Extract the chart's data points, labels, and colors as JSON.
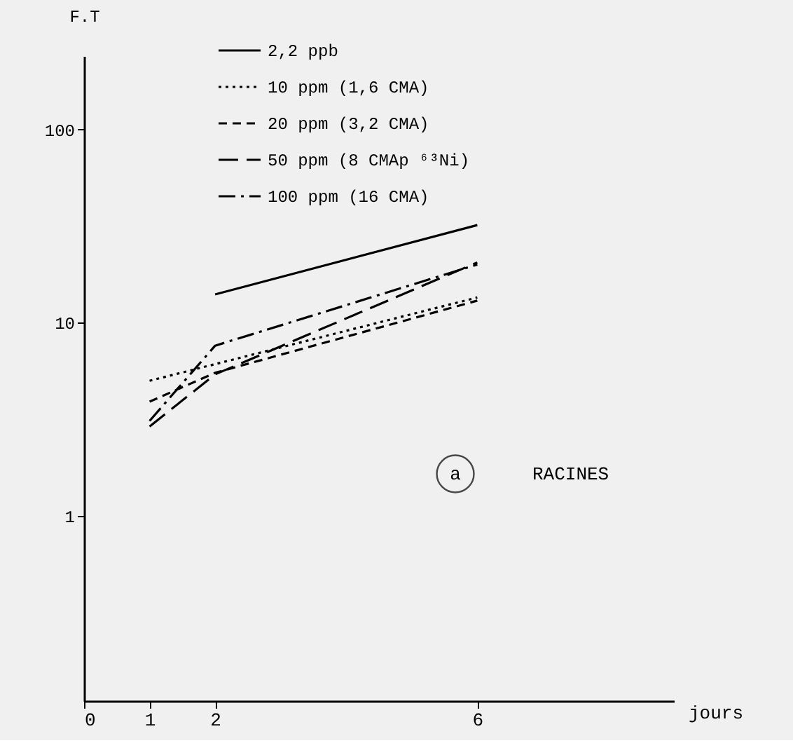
{
  "chart_data": {
    "type": "line",
    "xlabel": "jours",
    "ylabel": "F.T",
    "series": [
      {
        "name": "2,2 ppb",
        "color": "#000000",
        "line_style": "solid",
        "x": [
          2,
          6
        ],
        "values": [
          14,
          32
        ]
      },
      {
        "name": "10 ppm (1,6 CMA)",
        "color": "#000000",
        "line_style": "dotted",
        "x": [
          1,
          6
        ],
        "values": [
          5.0,
          13.5
        ]
      },
      {
        "name": "20 ppm (3,2 CMA)",
        "color": "#000000",
        "line_style": "dashed",
        "x": [
          1,
          2,
          6
        ],
        "values": [
          3.9,
          5.5,
          13
        ]
      },
      {
        "name": "50 ppm (8 CMAp ⁶³Ni)",
        "color": "#000000",
        "line_style": "longdash",
        "x": [
          1,
          2,
          6
        ],
        "values": [
          2.9,
          5.4,
          20.5
        ]
      },
      {
        "name": "100 ppm (16 CMA)",
        "color": "#000000",
        "line_style": "dashdot",
        "x": [
          1,
          2,
          6
        ],
        "values": [
          3.1,
          7.6,
          20
        ]
      }
    ],
    "log": "y",
    "xlim": [
      0,
      9
    ],
    "xticks": [
      0,
      1,
      2,
      6
    ],
    "ylim": [
      0.11,
      240
    ],
    "yticks": [
      1,
      10,
      100
    ],
    "grid": false,
    "legend": "top",
    "marker": "none",
    "annotations": [
      "a",
      "RACINES"
    ]
  }
}
